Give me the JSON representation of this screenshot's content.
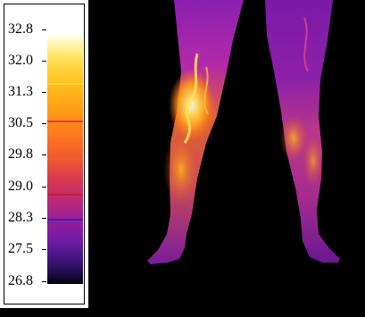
{
  "scale": {
    "ticks": [
      "32.8",
      "32.0",
      "31.3",
      "30.5",
      "29.8",
      "29.0",
      "28.3",
      "27.5",
      "26.8"
    ]
  },
  "image": {
    "subject": "thermal-image-legs"
  }
}
